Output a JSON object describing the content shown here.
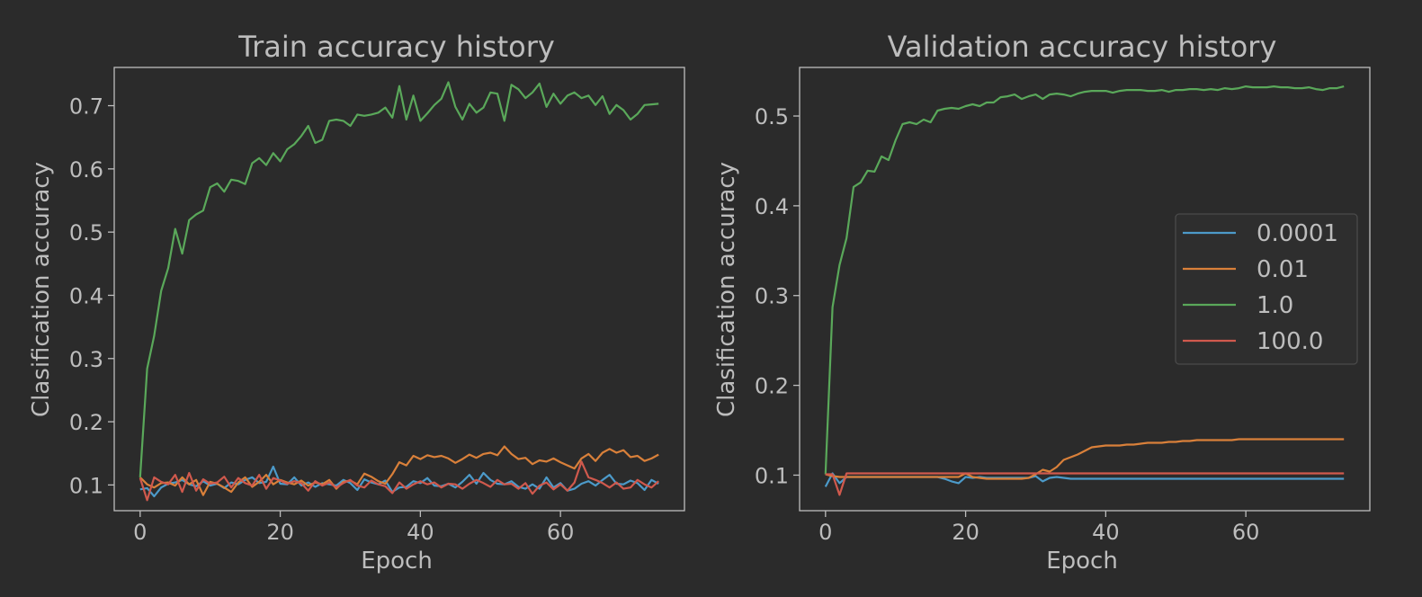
{
  "chart_data": [
    {
      "type": "line",
      "title": "Train accuracy history",
      "xlabel": "Epoch",
      "ylabel": "Clasification accuracy",
      "xlim": [
        -3.7,
        77.7
      ],
      "ylim": [
        0.0593,
        0.7605
      ],
      "xticks": [
        0,
        20,
        40,
        60
      ],
      "yticks": [
        0.1,
        0.2,
        0.3,
        0.4,
        0.5,
        0.6,
        0.7
      ],
      "grid": false,
      "legend": null,
      "series": [
        {
          "name": "0.0001",
          "color": "#4c9ac9",
          "values": [
            0.093,
            0.095,
            0.082,
            0.096,
            0.102,
            0.104,
            0.108,
            0.101,
            0.098,
            0.106,
            0.099,
            0.102,
            0.095,
            0.104,
            0.101,
            0.108,
            0.112,
            0.103,
            0.105,
            0.129,
            0.102,
            0.101,
            0.112,
            0.099,
            0.104,
            0.097,
            0.103,
            0.101,
            0.099,
            0.108,
            0.103,
            0.092,
            0.109,
            0.104,
            0.101,
            0.107,
            0.089,
            0.096,
            0.097,
            0.106,
            0.103,
            0.111,
            0.099,
            0.098,
            0.102,
            0.096,
            0.105,
            0.116,
            0.102,
            0.119,
            0.108,
            0.102,
            0.101,
            0.106,
            0.097,
            0.094,
            0.101,
            0.094,
            0.112,
            0.096,
            0.103,
            0.091,
            0.094,
            0.102,
            0.106,
            0.099,
            0.108,
            0.116,
            0.102,
            0.101,
            0.107,
            0.103,
            0.092,
            0.108,
            0.102
          ]
        },
        {
          "name": "0.01",
          "color": "#d9803a",
          "values": [
            0.112,
            0.101,
            0.096,
            0.103,
            0.104,
            0.099,
            0.112,
            0.101,
            0.108,
            0.084,
            0.105,
            0.102,
            0.096,
            0.089,
            0.104,
            0.112,
            0.097,
            0.105,
            0.116,
            0.101,
            0.108,
            0.104,
            0.101,
            0.107,
            0.099,
            0.104,
            0.101,
            0.108,
            0.094,
            0.105,
            0.107,
            0.101,
            0.118,
            0.113,
            0.106,
            0.102,
            0.117,
            0.136,
            0.131,
            0.146,
            0.141,
            0.147,
            0.144,
            0.146,
            0.142,
            0.135,
            0.141,
            0.148,
            0.143,
            0.149,
            0.151,
            0.147,
            0.161,
            0.149,
            0.141,
            0.143,
            0.133,
            0.139,
            0.137,
            0.142,
            0.136,
            0.131,
            0.126,
            0.142,
            0.149,
            0.138,
            0.151,
            0.157,
            0.151,
            0.155,
            0.144,
            0.146,
            0.138,
            0.142,
            0.148
          ]
        },
        {
          "name": "1.0",
          "color": "#5aa85a",
          "values": [
            0.112,
            0.284,
            0.336,
            0.407,
            0.443,
            0.505,
            0.466,
            0.519,
            0.528,
            0.534,
            0.571,
            0.577,
            0.564,
            0.583,
            0.581,
            0.576,
            0.609,
            0.617,
            0.606,
            0.625,
            0.612,
            0.631,
            0.639,
            0.652,
            0.668,
            0.641,
            0.646,
            0.676,
            0.678,
            0.676,
            0.668,
            0.686,
            0.684,
            0.686,
            0.689,
            0.697,
            0.681,
            0.731,
            0.678,
            0.716,
            0.676,
            0.688,
            0.701,
            0.711,
            0.737,
            0.698,
            0.678,
            0.703,
            0.689,
            0.697,
            0.721,
            0.719,
            0.676,
            0.733,
            0.726,
            0.712,
            0.721,
            0.735,
            0.698,
            0.719,
            0.703,
            0.716,
            0.721,
            0.712,
            0.716,
            0.701,
            0.715,
            0.687,
            0.701,
            0.693,
            0.678,
            0.687,
            0.701,
            0.702,
            0.703
          ]
        },
        {
          "name": "100.0",
          "color": "#d0594d",
          "values": [
            0.111,
            0.076,
            0.112,
            0.105,
            0.101,
            0.116,
            0.089,
            0.119,
            0.091,
            0.109,
            0.102,
            0.104,
            0.113,
            0.096,
            0.111,
            0.103,
            0.099,
            0.116,
            0.094,
            0.111,
            0.107,
            0.102,
            0.106,
            0.103,
            0.091,
            0.106,
            0.099,
            0.104,
            0.096,
            0.103,
            0.108,
            0.099,
            0.096,
            0.107,
            0.101,
            0.098,
            0.087,
            0.104,
            0.094,
            0.101,
            0.106,
            0.101,
            0.104,
            0.096,
            0.102,
            0.101,
            0.094,
            0.102,
            0.108,
            0.103,
            0.097,
            0.108,
            0.101,
            0.102,
            0.094,
            0.103,
            0.086,
            0.099,
            0.104,
            0.093,
            0.101,
            0.091,
            0.104,
            0.137,
            0.112,
            0.108,
            0.103,
            0.096,
            0.104,
            0.094,
            0.096,
            0.108,
            0.101,
            0.096,
            0.106
          ]
        }
      ]
    },
    {
      "type": "line",
      "title": "Validation accuracy history",
      "xlabel": "Epoch",
      "ylabel": "Clasification accuracy",
      "xlim": [
        -3.7,
        77.7
      ],
      "ylim": [
        0.0604,
        0.5541
      ],
      "xticks": [
        0,
        20,
        40,
        60
      ],
      "yticks": [
        0.1,
        0.2,
        0.3,
        0.4,
        0.5
      ],
      "grid": false,
      "legend": "center-right",
      "series": [
        {
          "name": "0.0001",
          "color": "#4c9ac9",
          "values": [
            0.087,
            0.102,
            0.091,
            0.098,
            0.098,
            0.098,
            0.098,
            0.098,
            0.098,
            0.098,
            0.098,
            0.098,
            0.098,
            0.098,
            0.098,
            0.098,
            0.098,
            0.096,
            0.093,
            0.091,
            0.098,
            0.097,
            0.098,
            0.097,
            0.097,
            0.097,
            0.097,
            0.097,
            0.097,
            0.097,
            0.099,
            0.093,
            0.097,
            0.098,
            0.097,
            0.096,
            0.096,
            0.096,
            0.096,
            0.096,
            0.096,
            0.096,
            0.096,
            0.096,
            0.096,
            0.096,
            0.096,
            0.096,
            0.096,
            0.096,
            0.096,
            0.096,
            0.096,
            0.096,
            0.096,
            0.096,
            0.096,
            0.096,
            0.096,
            0.096,
            0.096,
            0.096,
            0.096,
            0.096,
            0.096,
            0.096,
            0.096,
            0.096,
            0.096,
            0.096,
            0.096,
            0.096,
            0.096,
            0.096,
            0.096
          ]
        },
        {
          "name": "0.01",
          "color": "#d9803a",
          "values": [
            0.101,
            0.099,
            0.098,
            0.098,
            0.098,
            0.098,
            0.098,
            0.098,
            0.098,
            0.098,
            0.098,
            0.098,
            0.098,
            0.098,
            0.098,
            0.098,
            0.098,
            0.098,
            0.098,
            0.098,
            0.102,
            0.098,
            0.097,
            0.096,
            0.096,
            0.096,
            0.096,
            0.096,
            0.096,
            0.097,
            0.101,
            0.106,
            0.104,
            0.109,
            0.117,
            0.12,
            0.123,
            0.127,
            0.131,
            0.132,
            0.133,
            0.133,
            0.133,
            0.134,
            0.134,
            0.135,
            0.136,
            0.136,
            0.136,
            0.137,
            0.137,
            0.138,
            0.138,
            0.139,
            0.139,
            0.139,
            0.139,
            0.139,
            0.139,
            0.14,
            0.14,
            0.14,
            0.14,
            0.14,
            0.14,
            0.14,
            0.14,
            0.14,
            0.14,
            0.14,
            0.14,
            0.14,
            0.14,
            0.14,
            0.14
          ]
        },
        {
          "name": "1.0",
          "color": "#5aa85a",
          "values": [
            0.101,
            0.287,
            0.334,
            0.364,
            0.421,
            0.426,
            0.439,
            0.438,
            0.455,
            0.451,
            0.473,
            0.491,
            0.493,
            0.491,
            0.496,
            0.493,
            0.506,
            0.508,
            0.509,
            0.508,
            0.511,
            0.513,
            0.511,
            0.515,
            0.515,
            0.521,
            0.522,
            0.524,
            0.519,
            0.522,
            0.524,
            0.519,
            0.524,
            0.525,
            0.524,
            0.522,
            0.525,
            0.527,
            0.528,
            0.528,
            0.528,
            0.526,
            0.528,
            0.529,
            0.529,
            0.529,
            0.528,
            0.528,
            0.529,
            0.527,
            0.529,
            0.529,
            0.53,
            0.53,
            0.529,
            0.53,
            0.529,
            0.531,
            0.53,
            0.531,
            0.533,
            0.532,
            0.532,
            0.532,
            0.533,
            0.532,
            0.532,
            0.531,
            0.531,
            0.532,
            0.53,
            0.529,
            0.531,
            0.531,
            0.533
          ]
        },
        {
          "name": "100.0",
          "color": "#d0594d",
          "values": [
            0.101,
            0.101,
            0.078,
            0.102,
            0.102,
            0.102,
            0.102,
            0.102,
            0.102,
            0.102,
            0.102,
            0.102,
            0.102,
            0.102,
            0.102,
            0.102,
            0.102,
            0.102,
            0.102,
            0.102,
            0.102,
            0.102,
            0.102,
            0.102,
            0.102,
            0.102,
            0.102,
            0.102,
            0.102,
            0.102,
            0.102,
            0.102,
            0.102,
            0.102,
            0.102,
            0.102,
            0.102,
            0.102,
            0.102,
            0.102,
            0.102,
            0.102,
            0.102,
            0.102,
            0.102,
            0.102,
            0.102,
            0.102,
            0.102,
            0.102,
            0.102,
            0.102,
            0.102,
            0.102,
            0.102,
            0.102,
            0.102,
            0.102,
            0.102,
            0.102,
            0.102,
            0.102,
            0.102,
            0.102,
            0.102,
            0.102,
            0.102,
            0.102,
            0.102,
            0.102,
            0.102,
            0.102,
            0.102,
            0.102,
            0.102
          ]
        }
      ]
    }
  ]
}
